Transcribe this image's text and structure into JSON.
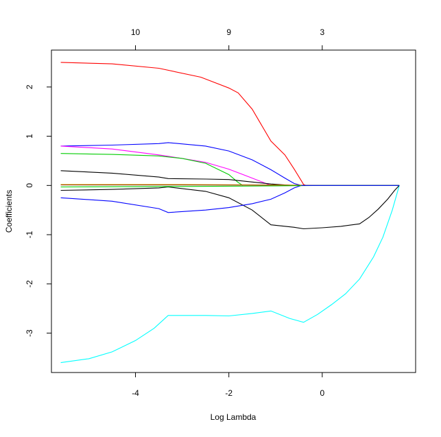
{
  "chart_data": {
    "type": "line",
    "title": "",
    "xlabel": "Log Lambda",
    "ylabel": "Coefficients",
    "xlim": [
      -5.8,
      2.0
    ],
    "ylim": [
      -3.8,
      2.75
    ],
    "x_ticks": [
      -4,
      -2,
      0
    ],
    "x_tick_labels": [
      "-4",
      "-2",
      "0"
    ],
    "y_ticks": [
      2,
      1,
      0,
      -1,
      -2,
      -3
    ],
    "y_tick_labels": [
      "2",
      "1",
      "0",
      "-1",
      "-2",
      "-3"
    ],
    "top_axis": {
      "ticks": [
        -4,
        -2,
        0
      ],
      "labels": [
        "10",
        "9",
        "3"
      ]
    },
    "grid": false,
    "legend": "none",
    "series": [
      {
        "color": "#ff0000",
        "x": [
          -5.6,
          -4.5,
          -3.5,
          -2.6,
          -2.0,
          -1.8,
          -1.5,
          -1.1,
          -0.8,
          -0.6,
          -0.45,
          -0.4,
          -0.35
        ],
        "y": [
          2.5,
          2.47,
          2.38,
          2.2,
          1.98,
          1.88,
          1.55,
          0.9,
          0.62,
          0.33,
          0.1,
          0.02,
          0.0
        ]
      },
      {
        "color": "#00ffff",
        "x": [
          -5.6,
          -5.0,
          -4.5,
          -4.0,
          -3.6,
          -3.3,
          -2.5,
          -2.0,
          -1.5,
          -1.1,
          -0.7,
          -0.4,
          -0.1,
          0.2,
          0.5,
          0.8,
          1.1,
          1.3,
          1.5,
          1.65
        ],
        "y": [
          -3.6,
          -3.52,
          -3.38,
          -3.15,
          -2.9,
          -2.64,
          -2.64,
          -2.65,
          -2.6,
          -2.55,
          -2.7,
          -2.78,
          -2.62,
          -2.42,
          -2.2,
          -1.9,
          -1.45,
          -1.05,
          -0.5,
          0.0
        ]
      },
      {
        "color": "#000000",
        "x": [
          -5.6,
          -4.5,
          -3.5,
          -3.3,
          -2.5,
          -2.0,
          -1.5,
          -1.1,
          -0.6,
          -0.4,
          0.0,
          0.4,
          0.8,
          1.0,
          1.2,
          1.4,
          1.55,
          1.65
        ],
        "y": [
          -0.1,
          -0.08,
          -0.05,
          -0.03,
          -0.12,
          -0.25,
          -0.5,
          -0.8,
          -0.85,
          -0.88,
          -0.86,
          -0.83,
          -0.78,
          -0.65,
          -0.48,
          -0.28,
          -0.1,
          0.0
        ]
      },
      {
        "color": "#0000ff",
        "x": [
          -5.6,
          -4.5,
          -3.5,
          -3.3,
          -2.5,
          -2.0,
          -1.5,
          -1.1,
          -0.8,
          -0.6,
          -0.45
        ],
        "y": [
          -0.25,
          -0.32,
          -0.47,
          -0.55,
          -0.5,
          -0.45,
          -0.37,
          -0.28,
          -0.15,
          -0.05,
          0.0
        ]
      },
      {
        "color": "#0000ff",
        "x": [
          -5.6,
          -4.5,
          -3.5,
          -3.3,
          -2.5,
          -2.0,
          -1.5,
          -1.1,
          -0.8,
          -0.6,
          -0.45
        ],
        "y": [
          0.8,
          0.82,
          0.85,
          0.87,
          0.8,
          0.7,
          0.52,
          0.32,
          0.15,
          0.04,
          0.0
        ]
      },
      {
        "color": "#ff00ff",
        "x": [
          -5.6,
          -4.5,
          -3.5,
          -3.0,
          -2.5,
          -2.0,
          -1.5,
          -1.1
        ],
        "y": [
          0.8,
          0.74,
          0.62,
          0.55,
          0.47,
          0.33,
          0.15,
          0.0
        ]
      },
      {
        "color": "#00cd00",
        "x": [
          -5.6,
          -4.5,
          -3.5,
          -3.0,
          -2.5,
          -2.0,
          -1.8,
          -1.7
        ],
        "y": [
          0.65,
          0.63,
          0.6,
          0.55,
          0.45,
          0.22,
          0.06,
          0.0
        ]
      },
      {
        "color": "#000000",
        "x": [
          -5.6,
          -4.5,
          -3.5,
          -3.3,
          -2.5,
          -2.0,
          -1.5,
          -1.1,
          -0.8,
          -0.6
        ],
        "y": [
          0.3,
          0.25,
          0.17,
          0.14,
          0.13,
          0.12,
          0.07,
          0.03,
          0.01,
          0.0
        ]
      },
      {
        "color": "#ffa500",
        "x": [
          -5.6,
          -3.0,
          -1.0,
          0.0,
          1.65
        ],
        "y": [
          0.02,
          0.02,
          0.01,
          0.0,
          0.0
        ]
      },
      {
        "color": "#8b4513",
        "x": [
          -5.6,
          -3.0,
          -1.0,
          0.0,
          1.65
        ],
        "y": [
          0.01,
          0.01,
          0.005,
          0.0,
          0.0
        ]
      },
      {
        "color": "#00cd00",
        "x": [
          -5.6,
          -3.0,
          -1.0,
          0.0,
          1.65
        ],
        "y": [
          -0.03,
          -0.02,
          -0.01,
          0.0,
          0.0
        ]
      },
      {
        "color": "#0000ff",
        "x": [
          -0.45,
          0.5,
          1.65
        ],
        "y": [
          0.0,
          0.0,
          0.0
        ]
      }
    ]
  }
}
